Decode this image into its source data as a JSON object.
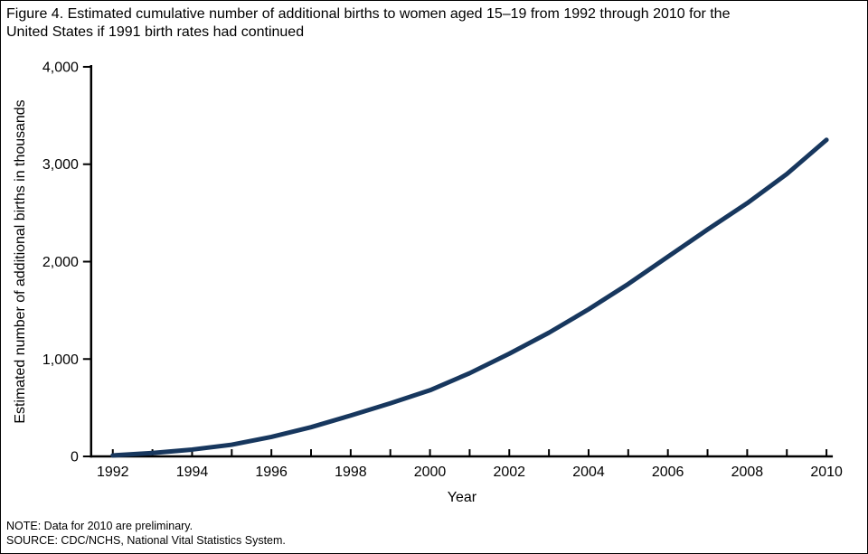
{
  "figure": {
    "title_lines": [
      "Figure 4. Estimated cumulative number of additional births to women aged 15–19 from 1992 through 2010 for the",
      "United States if 1991 birth rates had continued"
    ],
    "note": "NOTE: Data for 2010 are preliminary.",
    "source": "SOURCE: CDC/NCHS, National Vital Statistics System."
  },
  "chart_data": {
    "type": "line",
    "title": "Figure 4. Estimated cumulative number of additional births to women aged 15–19 from 1992 through 2010 for the United States if 1991 birth rates had continued",
    "xlabel": "Year",
    "ylabel": "Estimated number of additional births in thousands",
    "x": [
      1992,
      1993,
      1994,
      1995,
      1996,
      1997,
      1998,
      1999,
      2000,
      2001,
      2002,
      2003,
      2004,
      2005,
      2006,
      2007,
      2008,
      2009,
      2010
    ],
    "values": [
      10,
      35,
      70,
      120,
      200,
      300,
      420,
      545,
      680,
      855,
      1055,
      1270,
      1510,
      1770,
      2050,
      2330,
      2600,
      2900,
      3250
    ],
    "xlim": [
      1992,
      2010
    ],
    "ylim": [
      0,
      4000
    ],
    "yticks": [
      0,
      1000,
      2000,
      3000,
      4000
    ],
    "ytick_labels": [
      "0",
      "1,000",
      "2,000",
      "3,000",
      "4,000"
    ],
    "xtick_labels": [
      1992,
      1994,
      1996,
      1998,
      2000,
      2002,
      2004,
      2006,
      2008,
      2010
    ],
    "line_color": "#17375e",
    "axis_color": "#000000",
    "grid": false,
    "legend": "none"
  }
}
